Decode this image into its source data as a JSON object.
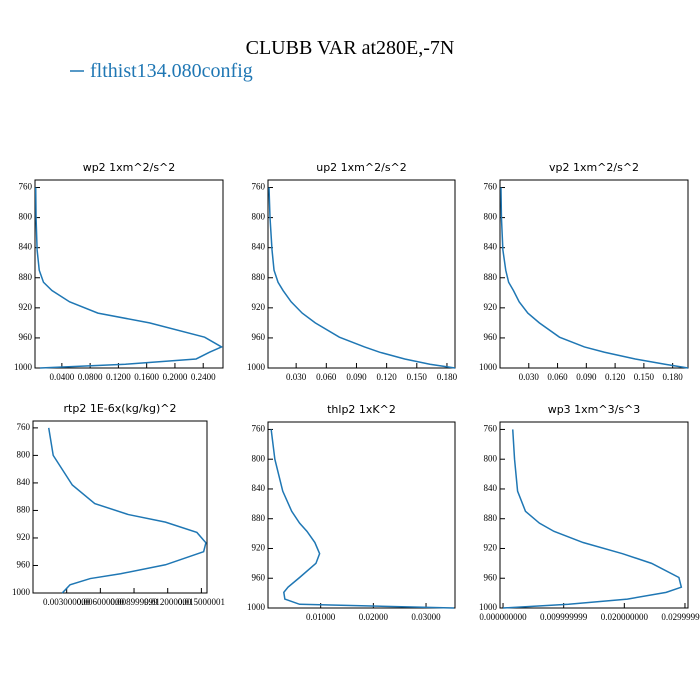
{
  "title": "CLUBB VAR at280E,-7N",
  "legend": {
    "name": "flthist134.080config",
    "color": "#1f77b4"
  },
  "chart_data": [
    {
      "type": "line",
      "title": "wp2  1xm^2/s^2",
      "y": [
        760,
        800,
        843,
        870,
        886,
        897,
        912,
        927,
        940,
        959,
        972,
        979,
        988,
        995,
        1000
      ],
      "values": [
        0.003,
        0.0035,
        0.005,
        0.008,
        0.014,
        0.026,
        0.051,
        0.091,
        0.164,
        0.242,
        0.266,
        0.249,
        0.23,
        0.13,
        0.009
      ],
      "xlim": [
        0.002,
        0.268
      ],
      "xticks": [
        {
          "value": 0.04,
          "label": "0.0400"
        },
        {
          "value": 0.08,
          "label": "0.0800"
        },
        {
          "value": 0.12,
          "label": "0.1200"
        },
        {
          "value": 0.16,
          "label": "0.1600"
        },
        {
          "value": 0.2,
          "label": "0.2000"
        },
        {
          "value": 0.24,
          "label": "0.2400"
        }
      ],
      "ylim": [
        750,
        1000
      ],
      "yticks": [
        760,
        800,
        840,
        880,
        920,
        960,
        1000
      ],
      "y_inverted": true
    },
    {
      "type": "line",
      "title": "up2  1xm^2/s^2",
      "y": [
        760,
        800,
        843,
        870,
        886,
        897,
        912,
        927,
        940,
        959,
        972,
        979,
        988,
        995,
        1000
      ],
      "values": [
        0.003,
        0.004,
        0.006,
        0.008,
        0.012,
        0.017,
        0.025,
        0.036,
        0.049,
        0.073,
        0.098,
        0.113,
        0.138,
        0.163,
        0.188
      ],
      "xlim": [
        0.002,
        0.188
      ],
      "xticks": [
        {
          "value": 0.03,
          "label": "0.030"
        },
        {
          "value": 0.06,
          "label": "0.060"
        },
        {
          "value": 0.09,
          "label": "0.090"
        },
        {
          "value": 0.12,
          "label": "0.120"
        },
        {
          "value": 0.15,
          "label": "0.150"
        },
        {
          "value": 0.18,
          "label": "0.180"
        }
      ],
      "ylim": [
        750,
        1000
      ],
      "yticks": [
        760,
        800,
        840,
        880,
        920,
        960,
        1000
      ],
      "y_inverted": true
    },
    {
      "type": "line",
      "title": "vp2  1xm^2/s^2",
      "y": [
        760,
        800,
        843,
        870,
        886,
        897,
        912,
        927,
        940,
        959,
        972,
        979,
        988,
        995,
        1000
      ],
      "values": [
        0.001,
        0.0015,
        0.003,
        0.006,
        0.009,
        0.014,
        0.02,
        0.029,
        0.041,
        0.062,
        0.088,
        0.109,
        0.141,
        0.172,
        0.196
      ],
      "xlim": [
        0,
        0.196
      ],
      "xticks": [
        {
          "value": 0.03,
          "label": "0.030"
        },
        {
          "value": 0.06,
          "label": "0.060"
        },
        {
          "value": 0.09,
          "label": "0.090"
        },
        {
          "value": 0.12,
          "label": "0.120"
        },
        {
          "value": 0.15,
          "label": "0.150"
        },
        {
          "value": 0.18,
          "label": "0.180"
        }
      ],
      "ylim": [
        750,
        1000
      ],
      "yticks": [
        760,
        800,
        840,
        880,
        920,
        960,
        1000
      ],
      "y_inverted": true
    },
    {
      "type": "line",
      "title": "rtp2  1E-6x(kg/kg)^2",
      "y": [
        760,
        800,
        843,
        870,
        886,
        897,
        912,
        927,
        940,
        959,
        972,
        979,
        988,
        995,
        1000
      ],
      "values": [
        0.0014,
        0.0018,
        0.0035,
        0.0055,
        0.0085,
        0.0118,
        0.0146,
        0.0154,
        0.0152,
        0.0118,
        0.0078,
        0.0051,
        0.0033,
        0.0029,
        0.0026
      ],
      "xlim": [
        0,
        0.0155
      ],
      "xticks": [
        {
          "value": 0.003,
          "label": "0.003000000"
        },
        {
          "value": 0.006,
          "label": "0.006000000"
        },
        {
          "value": 0.009,
          "label": "0.008999999"
        },
        {
          "value": 0.012,
          "label": "0.012000000"
        },
        {
          "value": 0.015,
          "label": "0.015000001"
        }
      ],
      "ylim": [
        750,
        1000
      ],
      "yticks": [
        760,
        800,
        840,
        880,
        920,
        960,
        1000
      ],
      "y_inverted": true
    },
    {
      "type": "line",
      "title": "thlp2  1xK^2",
      "y": [
        760,
        800,
        843,
        870,
        886,
        897,
        912,
        927,
        940,
        959,
        972,
        979,
        988,
        995,
        1000
      ],
      "values": [
        0.0006,
        0.0013,
        0.0028,
        0.0045,
        0.006,
        0.0074,
        0.0089,
        0.0098,
        0.0091,
        0.006,
        0.0038,
        0.003,
        0.0032,
        0.006,
        0.0353
      ],
      "xlim": [
        0,
        0.0355
      ],
      "xticks": [
        {
          "value": 0.01,
          "label": "0.01000"
        },
        {
          "value": 0.02,
          "label": "0.02000"
        },
        {
          "value": 0.03,
          "label": "0.03000"
        }
      ],
      "ylim": [
        750,
        1000
      ],
      "yticks": [
        760,
        800,
        840,
        880,
        920,
        960,
        1000
      ],
      "y_inverted": true
    },
    {
      "type": "line",
      "title": "wp3  1xm^3/s^3",
      "y": [
        760,
        800,
        843,
        870,
        886,
        897,
        912,
        927,
        940,
        959,
        972,
        979,
        988,
        995,
        1000
      ],
      "values": [
        0.0016,
        0.0019,
        0.0024,
        0.0037,
        0.006,
        0.0084,
        0.0132,
        0.0197,
        0.0245,
        0.029,
        0.0294,
        0.0269,
        0.0205,
        0.0108,
        0
      ],
      "xlim": [
        -0.0005,
        0.0305
      ],
      "xticks": [
        {
          "value": 0,
          "label": "0.000000000"
        },
        {
          "value": 0.01,
          "label": "0.009999999"
        },
        {
          "value": 0.02,
          "label": "0.020000000"
        },
        {
          "value": 0.03,
          "label": "0.029999999"
        }
      ],
      "ylim": [
        750,
        1000
      ],
      "yticks": [
        760,
        800,
        840,
        880,
        920,
        960,
        1000
      ],
      "y_inverted": true
    }
  ]
}
